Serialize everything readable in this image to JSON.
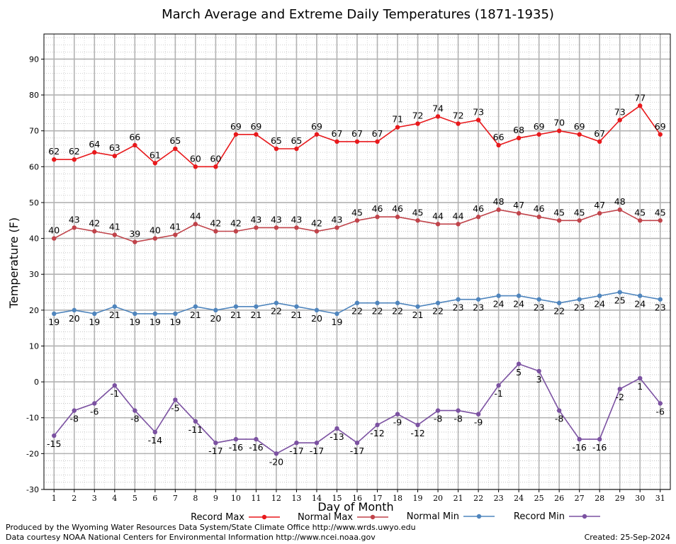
{
  "chart_data": {
    "type": "line",
    "title": "March Average and Extreme Daily Temperatures (1871-1935)",
    "xlabel": "Day of Month",
    "ylabel": "Temperature (F)",
    "x": [
      1,
      2,
      3,
      4,
      5,
      6,
      7,
      8,
      9,
      10,
      11,
      12,
      13,
      14,
      15,
      16,
      17,
      18,
      19,
      20,
      21,
      22,
      23,
      24,
      25,
      26,
      27,
      28,
      29,
      30,
      31
    ],
    "ylim": [
      -30,
      97
    ],
    "xlim": [
      0.5,
      31.5
    ],
    "yticks": [
      -30,
      -20,
      -10,
      0,
      10,
      20,
      30,
      40,
      50,
      60,
      70,
      80,
      90
    ],
    "grid": true,
    "legend_position": "bottom",
    "series": [
      {
        "name": "Record Max",
        "color": "#e8191c",
        "label_position": "above",
        "values": [
          62,
          62,
          64,
          63,
          66,
          61,
          65,
          60,
          60,
          69,
          69,
          65,
          65,
          69,
          67,
          67,
          67,
          71,
          72,
          74,
          72,
          73,
          66,
          68,
          69,
          70,
          69,
          67,
          73,
          77,
          69
        ]
      },
      {
        "name": "Normal Max",
        "color": "#c0434a",
        "label_position": "above",
        "values": [
          40,
          43,
          42,
          41,
          39,
          40,
          41,
          44,
          42,
          42,
          43,
          43,
          43,
          42,
          43,
          45,
          46,
          46,
          45,
          44,
          44,
          46,
          48,
          47,
          46,
          45,
          45,
          47,
          48,
          45,
          45
        ]
      },
      {
        "name": "Normal Min",
        "color": "#4f85bd",
        "label_position": "below",
        "values": [
          19,
          20,
          19,
          21,
          19,
          19,
          19,
          21,
          20,
          21,
          21,
          22,
          21,
          20,
          19,
          22,
          22,
          22,
          21,
          22,
          23,
          23,
          24,
          24,
          23,
          22,
          23,
          24,
          25,
          24,
          23
        ]
      },
      {
        "name": "Record Min",
        "color": "#7b51a1",
        "label_position": "below",
        "values": [
          -15,
          -8,
          -6,
          -1,
          -8,
          -14,
          -5,
          -11,
          -17,
          -16,
          -16,
          -20,
          -17,
          -17,
          -13,
          -17,
          -12,
          -9,
          -12,
          -8,
          -8,
          -9,
          -1,
          5,
          3,
          -8,
          -16,
          -16,
          -2,
          1,
          -6
        ]
      }
    ]
  },
  "footer": {
    "produced_by": "Produced by the Wyoming Water Resources Data System/State Climate Office http://www.wrds.uwyo.edu",
    "data_courtesy": "Data courtesy NOAA National Centers for Environmental Information http://www.ncei.noaa.gov",
    "created": "Created:  25-Sep-2024"
  }
}
